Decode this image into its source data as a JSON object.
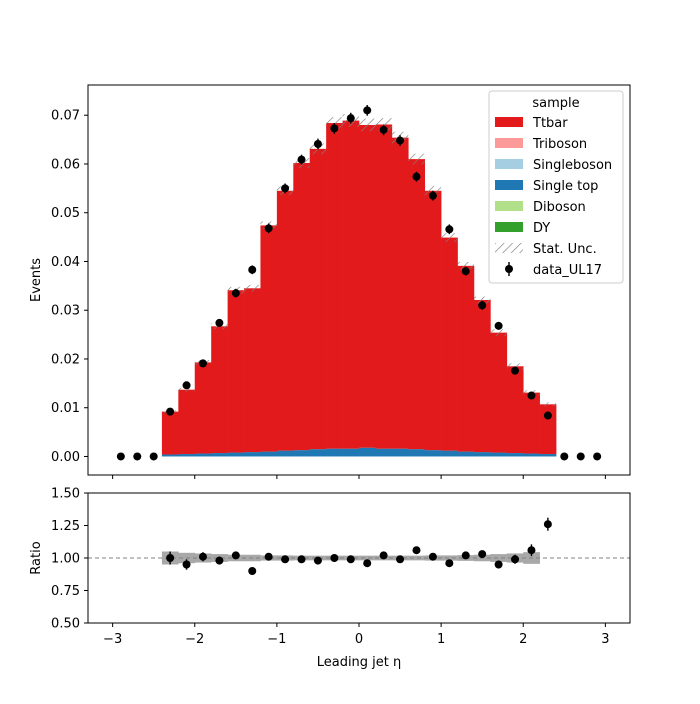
{
  "chart_data": [
    {
      "type": "bar",
      "panel": "main",
      "xlabel": "Leading jet  η",
      "ylabel": "Events",
      "xlim": [
        -3.3,
        3.3
      ],
      "ylim": [
        -0.0038,
        0.0762
      ],
      "yticks": [
        0.0,
        0.01,
        0.02,
        0.03,
        0.04,
        0.05,
        0.06,
        0.07
      ],
      "ytick_labels": [
        "0.00",
        "0.01",
        "0.02",
        "0.03",
        "0.04",
        "0.05",
        "0.06",
        "0.07"
      ],
      "xticks": [
        -3,
        -2,
        -1,
        0,
        1,
        2,
        3
      ],
      "xtick_labels": [
        "−3",
        "−2",
        "−1",
        "0",
        "1",
        "2",
        "3"
      ],
      "legend_title": "sample",
      "legend_position": "top-right",
      "bin_edges": [
        -3.0,
        -2.8,
        -2.6,
        -2.4,
        -2.2,
        -2.0,
        -1.8,
        -1.6,
        -1.4,
        -1.2,
        -1.0,
        -0.8,
        -0.6,
        -0.4,
        -0.2,
        0.0,
        0.2,
        0.4,
        0.6,
        0.8,
        1.0,
        1.2,
        1.4,
        1.6,
        1.8,
        2.0,
        2.2,
        2.4,
        2.6,
        2.8,
        3.0
      ],
      "stack_series": [
        {
          "name": "Single top",
          "color": "#1f78b4",
          "values": [
            0,
            0,
            0,
            0.0004,
            0.0005,
            0.0006,
            0.0007,
            0.0008,
            0.0009,
            0.001,
            0.0012,
            0.0013,
            0.0015,
            0.0016,
            0.0016,
            0.0018,
            0.0016,
            0.0016,
            0.0015,
            0.0013,
            0.0012,
            0.001,
            0.0009,
            0.0008,
            0.0007,
            0.0006,
            0.0005,
            0,
            0,
            0
          ]
        },
        {
          "name": "Ttbar",
          "color": "#e31a1c",
          "values": [
            0,
            0,
            0,
            0.0088,
            0.0132,
            0.0187,
            0.026,
            0.0333,
            0.0336,
            0.0464,
            0.0533,
            0.0589,
            0.0616,
            0.0668,
            0.0673,
            0.0662,
            0.0665,
            0.0638,
            0.0595,
            0.0532,
            0.0437,
            0.0381,
            0.0312,
            0.0246,
            0.0178,
            0.0125,
            0.0102,
            0,
            0,
            0
          ]
        }
      ],
      "stat_unc": [
        0,
        0,
        0,
        0.0003,
        0.0004,
        0.0005,
        0.0006,
        0.0007,
        0.0007,
        0.0008,
        0.0009,
        0.001,
        0.0011,
        0.0012,
        0.0013,
        0.0013,
        0.0013,
        0.0012,
        0.0011,
        0.001,
        0.0009,
        0.0008,
        0.0007,
        0.0007,
        0.0006,
        0.0005,
        0.0004,
        0,
        0,
        0
      ],
      "legend": [
        {
          "label": "Ttbar",
          "color": "#e31a1c",
          "kind": "patch"
        },
        {
          "label": "Triboson",
          "color": "#fb9a99",
          "kind": "patch"
        },
        {
          "label": "Singleboson",
          "color": "#a6cee3",
          "kind": "patch"
        },
        {
          "label": "Single top",
          "color": "#1f78b4",
          "kind": "patch"
        },
        {
          "label": "Diboson",
          "color": "#b2df8a",
          "kind": "patch"
        },
        {
          "label": "DY",
          "color": "#33a02c",
          "kind": "patch"
        },
        {
          "label": "Stat. Unc.",
          "color": "#808080",
          "kind": "hatch"
        },
        {
          "label": "data_UL17",
          "color": "#000000",
          "kind": "errorbar"
        }
      ],
      "data": {
        "name": "data_UL17",
        "x": [
          -2.9,
          -2.7,
          -2.5,
          -2.3,
          -2.1,
          -1.9,
          -1.7,
          -1.5,
          -1.3,
          -1.1,
          -0.9,
          -0.7,
          -0.5,
          -0.3,
          -0.1,
          0.1,
          0.3,
          0.5,
          0.7,
          0.9,
          1.1,
          1.3,
          1.5,
          1.7,
          1.9,
          2.1,
          2.3,
          2.5,
          2.7,
          2.9
        ],
        "y": [
          0.0,
          0.0,
          0.0,
          0.0092,
          0.0146,
          0.0191,
          0.0274,
          0.0335,
          0.0383,
          0.0468,
          0.055,
          0.0609,
          0.0641,
          0.0673,
          0.0694,
          0.071,
          0.067,
          0.0648,
          0.0574,
          0.0535,
          0.0466,
          0.038,
          0.031,
          0.0268,
          0.0176,
          0.0125,
          0.0084,
          0.0,
          0.0,
          0.0
        ],
        "yerr": [
          0,
          0,
          0,
          0.0006,
          0.0007,
          0.0008,
          0.0008,
          0.0009,
          0.0009,
          0.001,
          0.001,
          0.001,
          0.0011,
          0.0011,
          0.0011,
          0.0011,
          0.0011,
          0.0011,
          0.001,
          0.001,
          0.001,
          0.0009,
          0.0009,
          0.0008,
          0.0008,
          0.0007,
          0.0006,
          0,
          0,
          0
        ]
      }
    },
    {
      "type": "scatter",
      "panel": "ratio",
      "xlabel": "Leading jet  η",
      "ylabel": "Ratio",
      "xlim": [
        -3.3,
        3.3
      ],
      "ylim": [
        0.5,
        1.5
      ],
      "yticks": [
        0.5,
        0.75,
        1.0,
        1.25,
        1.5
      ],
      "ytick_labels": [
        "0.50",
        "0.75",
        "1.00",
        "1.25",
        "1.50"
      ],
      "reference_line": 1.0,
      "band": {
        "x_start": -2.4,
        "x_end": 2.2,
        "bin_edges": [
          -2.4,
          -2.2,
          -2.0,
          -1.8,
          -1.6,
          -1.4,
          -1.2,
          -1.0,
          -0.8,
          -0.6,
          -0.4,
          -0.2,
          0.0,
          0.2,
          0.4,
          0.6,
          0.8,
          1.0,
          1.2,
          1.4,
          1.6,
          1.8,
          2.0,
          2.2
        ],
        "half_width": [
          0.05,
          0.04,
          0.035,
          0.03,
          0.025,
          0.025,
          0.02,
          0.02,
          0.018,
          0.018,
          0.018,
          0.018,
          0.018,
          0.018,
          0.018,
          0.018,
          0.02,
          0.02,
          0.022,
          0.025,
          0.03,
          0.035,
          0.045
        ]
      },
      "points": {
        "x": [
          -2.3,
          -2.1,
          -1.9,
          -1.7,
          -1.5,
          -1.3,
          -1.1,
          -0.9,
          -0.7,
          -0.5,
          -0.3,
          -0.1,
          0.1,
          0.3,
          0.5,
          0.7,
          0.9,
          1.1,
          1.3,
          1.5,
          1.7,
          1.9,
          2.1,
          2.3
        ],
        "y": [
          1.0,
          0.95,
          1.01,
          0.98,
          1.02,
          0.9,
          1.01,
          0.99,
          0.99,
          0.98,
          1.0,
          0.99,
          0.96,
          1.02,
          0.99,
          1.06,
          1.01,
          0.96,
          1.02,
          1.03,
          0.95,
          0.99,
          1.06,
          1.26
        ],
        "yerr": [
          0.05,
          0.04,
          0.035,
          0.03,
          0.025,
          0.025,
          0.02,
          0.02,
          0.018,
          0.018,
          0.018,
          0.018,
          0.018,
          0.018,
          0.018,
          0.018,
          0.02,
          0.02,
          0.022,
          0.025,
          0.03,
          0.035,
          0.045,
          0.05
        ]
      }
    }
  ]
}
